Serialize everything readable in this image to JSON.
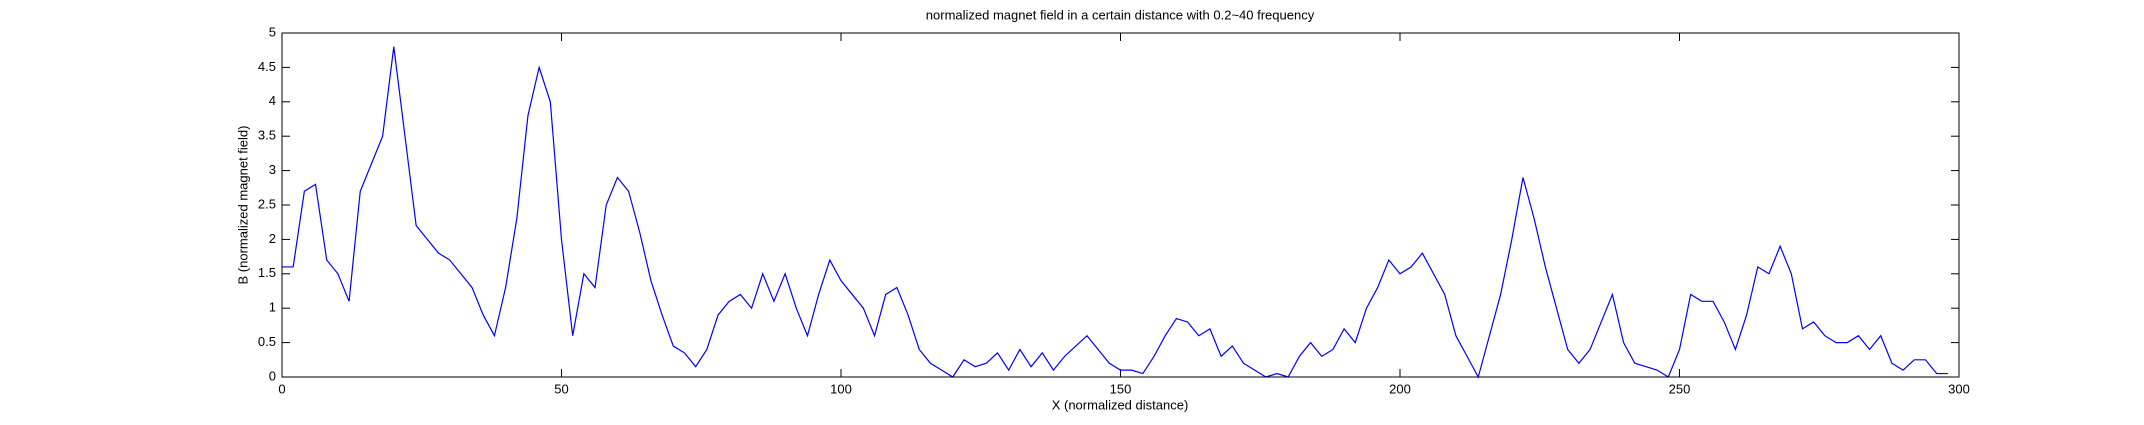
{
  "chart_data": {
    "type": "line",
    "title": "normalized magnet field in a certain distance with 0.2~40 frequency",
    "xlabel": "X (normalized distance)",
    "ylabel": "B (normalized magnet field)",
    "x": [
      0,
      2,
      4,
      6,
      8,
      10,
      12,
      14,
      16,
      18,
      20,
      22,
      24,
      26,
      28,
      30,
      32,
      34,
      36,
      38,
      40,
      42,
      44,
      46,
      48,
      50,
      52,
      54,
      56,
      58,
      60,
      62,
      64,
      66,
      68,
      70,
      72,
      74,
      76,
      78,
      80,
      82,
      84,
      86,
      88,
      90,
      92,
      94,
      96,
      98,
      100,
      102,
      104,
      106,
      108,
      110,
      112,
      114,
      116,
      118,
      120,
      122,
      124,
      126,
      128,
      130,
      132,
      134,
      136,
      138,
      140,
      142,
      144,
      146,
      148,
      150,
      152,
      154,
      156,
      158,
      160,
      162,
      164,
      166,
      168,
      170,
      172,
      174,
      176,
      178,
      180,
      182,
      184,
      186,
      188,
      190,
      192,
      194,
      196,
      198,
      200,
      202,
      204,
      206,
      208,
      210,
      212,
      214,
      216,
      218,
      220,
      222,
      224,
      226,
      228,
      230,
      232,
      234,
      236,
      238,
      240,
      242,
      244,
      246,
      248,
      250,
      252,
      254,
      256,
      258,
      260,
      262,
      264,
      266,
      268,
      270,
      272,
      274,
      276,
      278,
      280,
      282,
      284,
      286,
      288,
      290,
      292,
      294,
      296,
      298
    ],
    "series": [
      {
        "color": "#0000ff",
        "values": [
          1.6,
          1.6,
          2.7,
          2.8,
          1.7,
          1.5,
          1.1,
          2.7,
          3.1,
          3.5,
          4.8,
          3.5,
          2.2,
          2.0,
          1.8,
          1.7,
          1.5,
          1.3,
          0.9,
          0.6,
          1.3,
          2.3,
          3.8,
          4.5,
          4.0,
          2.0,
          0.6,
          1.5,
          1.3,
          2.5,
          2.9,
          2.7,
          2.1,
          1.4,
          0.9,
          0.45,
          0.35,
          0.15,
          0.4,
          0.9,
          1.1,
          1.2,
          1.0,
          1.5,
          1.1,
          1.5,
          1.0,
          0.6,
          1.2,
          1.7,
          1.4,
          1.2,
          1.0,
          0.6,
          1.2,
          1.3,
          0.9,
          0.4,
          0.2,
          0.1,
          0.0,
          0.25,
          0.15,
          0.2,
          0.35,
          0.1,
          0.4,
          0.15,
          0.35,
          0.1,
          0.3,
          0.45,
          0.6,
          0.4,
          0.2,
          0.1,
          0.1,
          0.05,
          0.3,
          0.6,
          0.85,
          0.8,
          0.6,
          0.7,
          0.3,
          0.45,
          0.2,
          0.1,
          0.0,
          0.05,
          0.0,
          0.3,
          0.5,
          0.3,
          0.4,
          0.7,
          0.5,
          1.0,
          1.3,
          1.7,
          1.5,
          1.6,
          1.8,
          1.5,
          1.2,
          0.6,
          0.3,
          0.0,
          0.6,
          1.2,
          2.0,
          2.9,
          2.3,
          1.6,
          1.0,
          0.4,
          0.2,
          0.4,
          0.8,
          1.2,
          0.5,
          0.2,
          0.15,
          0.1,
          0.0,
          0.4,
          1.2,
          1.1,
          1.1,
          0.8,
          0.4,
          0.9,
          1.6,
          1.5,
          1.9,
          1.5,
          0.7,
          0.8,
          0.6,
          0.5,
          0.5,
          0.6,
          0.4,
          0.6,
          0.2,
          0.1,
          0.25,
          0.25,
          0.05,
          0.05
        ]
      }
    ],
    "xlim": [
      0,
      300
    ],
    "ylim": [
      0,
      5
    ],
    "xticks": [
      0,
      50,
      100,
      150,
      200,
      250,
      300
    ],
    "yticks": [
      0,
      0.5,
      1,
      1.5,
      2,
      2.5,
      3,
      3.5,
      4,
      4.5,
      5
    ]
  }
}
